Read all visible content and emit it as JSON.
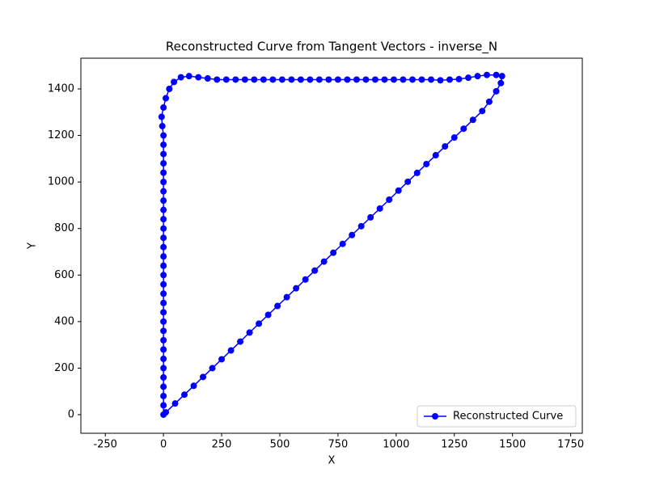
{
  "chart_data": {
    "type": "line",
    "title": "Reconstructed Curve from Tangent Vectors - inverse_N",
    "xlabel": "X",
    "ylabel": "Y",
    "x": [
      0,
      0,
      0,
      0,
      0,
      0,
      0,
      0,
      0,
      0,
      0,
      0,
      0,
      0,
      0,
      0,
      0,
      0,
      0,
      0,
      0,
      0,
      0,
      0,
      0,
      0,
      0,
      0,
      0,
      0,
      0,
      -5,
      -8,
      0,
      10,
      25,
      45,
      75,
      110,
      150,
      190,
      230,
      270,
      310,
      350,
      390,
      430,
      470,
      510,
      550,
      590,
      630,
      670,
      710,
      750,
      790,
      830,
      870,
      910,
      950,
      990,
      1030,
      1070,
      1110,
      1150,
      1190,
      1230,
      1270,
      1310,
      1350,
      1390,
      1430,
      1455,
      1450,
      1430,
      1400,
      1370,
      1330,
      1290,
      1250,
      1210,
      1170,
      1130,
      1090,
      1050,
      1010,
      970,
      930,
      890,
      850,
      810,
      770,
      730,
      690,
      650,
      610,
      570,
      530,
      490,
      450,
      410,
      370,
      330,
      290,
      250,
      210,
      170,
      130,
      90,
      50,
      10
    ],
    "series": [
      {
        "name": "Reconstructed Curve",
        "color": "#0000ff",
        "values": [
          0,
          40,
          80,
          120,
          160,
          200,
          240,
          280,
          320,
          360,
          400,
          440,
          480,
          520,
          560,
          600,
          640,
          680,
          720,
          760,
          800,
          840,
          880,
          920,
          960,
          1000,
          1040,
          1080,
          1120,
          1160,
          1200,
          1240,
          1280,
          1320,
          1360,
          1400,
          1430,
          1450,
          1455,
          1450,
          1445,
          1440,
          1440,
          1440,
          1440,
          1440,
          1440,
          1440,
          1440,
          1440,
          1440,
          1440,
          1440,
          1440,
          1440,
          1440,
          1440,
          1440,
          1440,
          1440,
          1440,
          1440,
          1440,
          1440,
          1440,
          1437,
          1440,
          1442,
          1448,
          1455,
          1460,
          1460,
          1455,
          1425,
          1390,
          1345,
          1305,
          1267,
          1229,
          1191,
          1153,
          1115,
          1077,
          1039,
          1001,
          963,
          924,
          886,
          848,
          810,
          772,
          734,
          696,
          658,
          619,
          581,
          543,
          505,
          467,
          429,
          391,
          353,
          314,
          276,
          238,
          200,
          162,
          124,
          86,
          48,
          10
        ]
      }
    ],
    "xlim": [
      -355,
      1800
    ],
    "ylim": [
      -80,
      1532
    ],
    "xticks": [
      -250,
      0,
      250,
      500,
      750,
      1000,
      1250,
      1500,
      1750
    ],
    "yticks": [
      0,
      200,
      400,
      600,
      800,
      1000,
      1200,
      1400
    ],
    "marker": true,
    "grid": false,
    "legend": "lower right"
  }
}
